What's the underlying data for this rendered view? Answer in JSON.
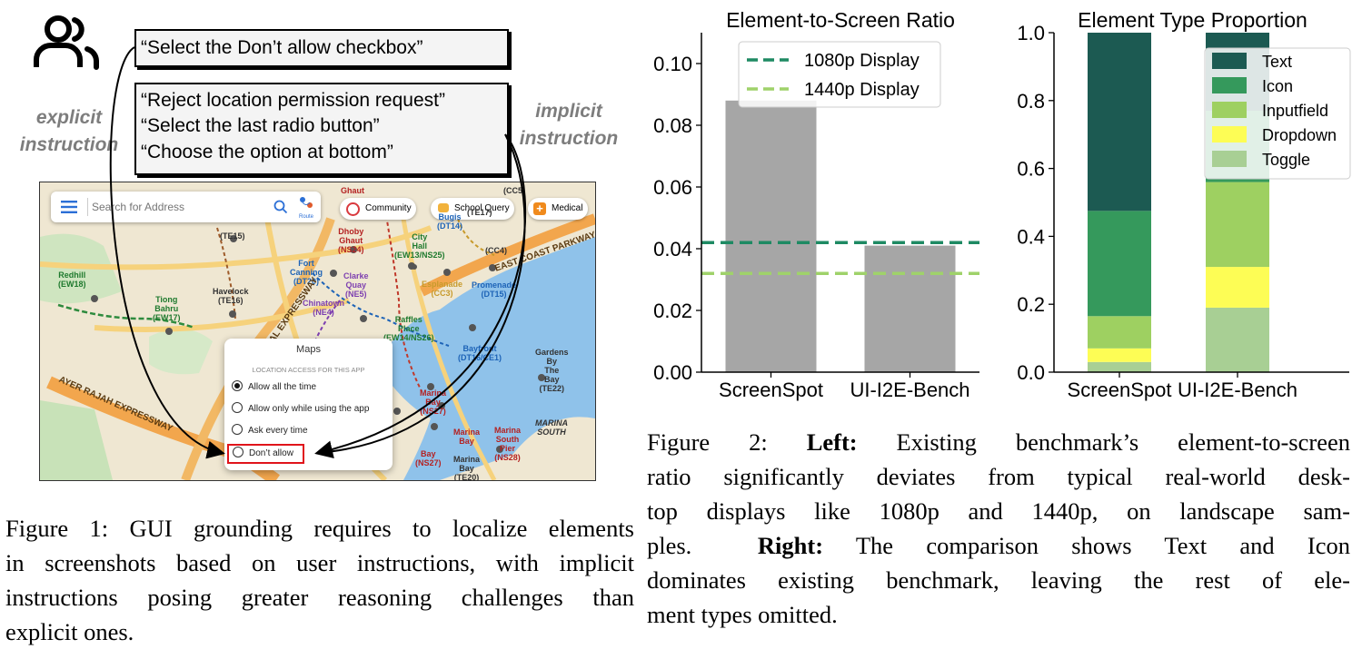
{
  "figure1": {
    "explicit_instruction": "“Select the Don’t allow checkbox”",
    "implicit_instructions": [
      "“Reject location permission request”",
      "“Select the last radio button”",
      "“Choose the option at bottom”"
    ],
    "explicit_label": [
      "explicit",
      "instruction"
    ],
    "implicit_label": [
      "implicit",
      "instruction"
    ],
    "search_placeholder": "Search for Address",
    "route_label": "Route",
    "pills": [
      "Community",
      "School Query",
      "Medical"
    ],
    "map_places": [
      "Redhill\n(EW18)",
      "Tiong\nBahru\n(EW17)",
      "Havelock\n(TE16)",
      "(TE15)",
      "Fort\nCanning\n(DT20)",
      "Dhoby\nGhaut\n(NS24)",
      "City\nHall\n(EW13/NS25)",
      "Bugis\n(DT14)",
      "Clarke\nQuay\n(NE5)",
      "Esplanade\n(CC3)",
      "Promenade\n(DT15)",
      "Chinatown\n(NE4)",
      "Raffles\nPlace\n(EW14/NS26)",
      "Bayfront\n(DT16/CE1)",
      "Gardens\nBy\nThe\nBay\n(TE22)",
      "Marina\nBay\n(NS27)",
      "Marina\nBay",
      "Marina\nSouth\nPier\n(NS28)",
      "MARINA\nSOUTH",
      "Bay\n(NS27)",
      "Marina\nBay\n(TE20)",
      "Ghaut",
      "(CC5)",
      "(CC4)",
      "(TE17)"
    ],
    "roads": [
      "EAST COAST PARKWAY",
      "CENTRAL EXPRESSWAY",
      "AYER RAJAH EXPRESSWAY"
    ],
    "popup": {
      "title": "Maps",
      "subtitle": "LOCATION ACCESS FOR THIS APP",
      "options": [
        "Allow all the time",
        "Allow only while using the app",
        "Ask every time",
        "Don’t allow"
      ],
      "selected_index": 0
    },
    "caption_lines": [
      "Figure 1: GUI grounding requires to localize elements",
      "in screenshots based on user instructions, with implicit",
      "instructions posing greater reasoning challenges than",
      "explicit ones."
    ]
  },
  "chart_data": [
    {
      "type": "bar",
      "title": "Element-to-Screen Ratio",
      "categories": [
        "ScreenSpot",
        "UI-I2E-Bench"
      ],
      "values": [
        0.088,
        0.041
      ],
      "bar_color": "#a6a6a6",
      "ylim": [
        0,
        0.11
      ],
      "yticks": [
        "0.00",
        "0.02",
        "0.04",
        "0.06",
        "0.08",
        "0.10"
      ],
      "ytick_values": [
        0,
        0.02,
        0.04,
        0.06,
        0.08,
        0.1
      ],
      "reference_lines": [
        {
          "name": "1080p Display",
          "value": 0.042,
          "color": "#1e8a63"
        },
        {
          "name": "1440p Display",
          "value": 0.032,
          "color": "#9fd26a"
        }
      ],
      "legend_position": "top-right"
    },
    {
      "type": "bar",
      "stacked": true,
      "title": "Element Type Proportion",
      "categories": [
        "ScreenSpot",
        "UI-I2E-Bench"
      ],
      "series": [
        {
          "name": "Toggle",
          "color": "#a8cf94",
          "values": [
            0.03,
            0.19
          ]
        },
        {
          "name": "Dropdown",
          "color": "#fdfd55",
          "values": [
            0.04,
            0.12
          ]
        },
        {
          "name": "Inputfield",
          "color": "#9ed061",
          "values": [
            0.095,
            0.25
          ]
        },
        {
          "name": "Icon",
          "color": "#35995c",
          "values": [
            0.31,
            0.21
          ]
        },
        {
          "name": "Text",
          "color": "#1c5a52",
          "values": [
            0.525,
            0.23
          ]
        }
      ],
      "legend_order": [
        "Text",
        "Icon",
        "Inputfield",
        "Dropdown",
        "Toggle"
      ],
      "ylim": [
        0,
        1.0
      ],
      "yticks": [
        "0.0",
        "0.2",
        "0.4",
        "0.6",
        "0.8",
        "1.0"
      ],
      "ytick_values": [
        0,
        0.2,
        0.4,
        0.6,
        0.8,
        1.0
      ],
      "legend_position": "top-right"
    }
  ],
  "figure2_caption": {
    "line1_prefix": "Figure 2: ",
    "line1_bold": "Left:",
    "line1_rest": " Existing benchmark’s element-to-screen",
    "line2": "ratio significantly deviates from typical real-world desk-",
    "line3": "top displays like 1080p and 1440p, on landscape sam-",
    "line4_prefix": "ples.  ",
    "line4_bold": "Right:",
    "line4_rest": " The comparison shows Text and Icon",
    "line5": "dominates existing benchmark, leaving the rest of ele-",
    "line6": "ment types omitted."
  }
}
